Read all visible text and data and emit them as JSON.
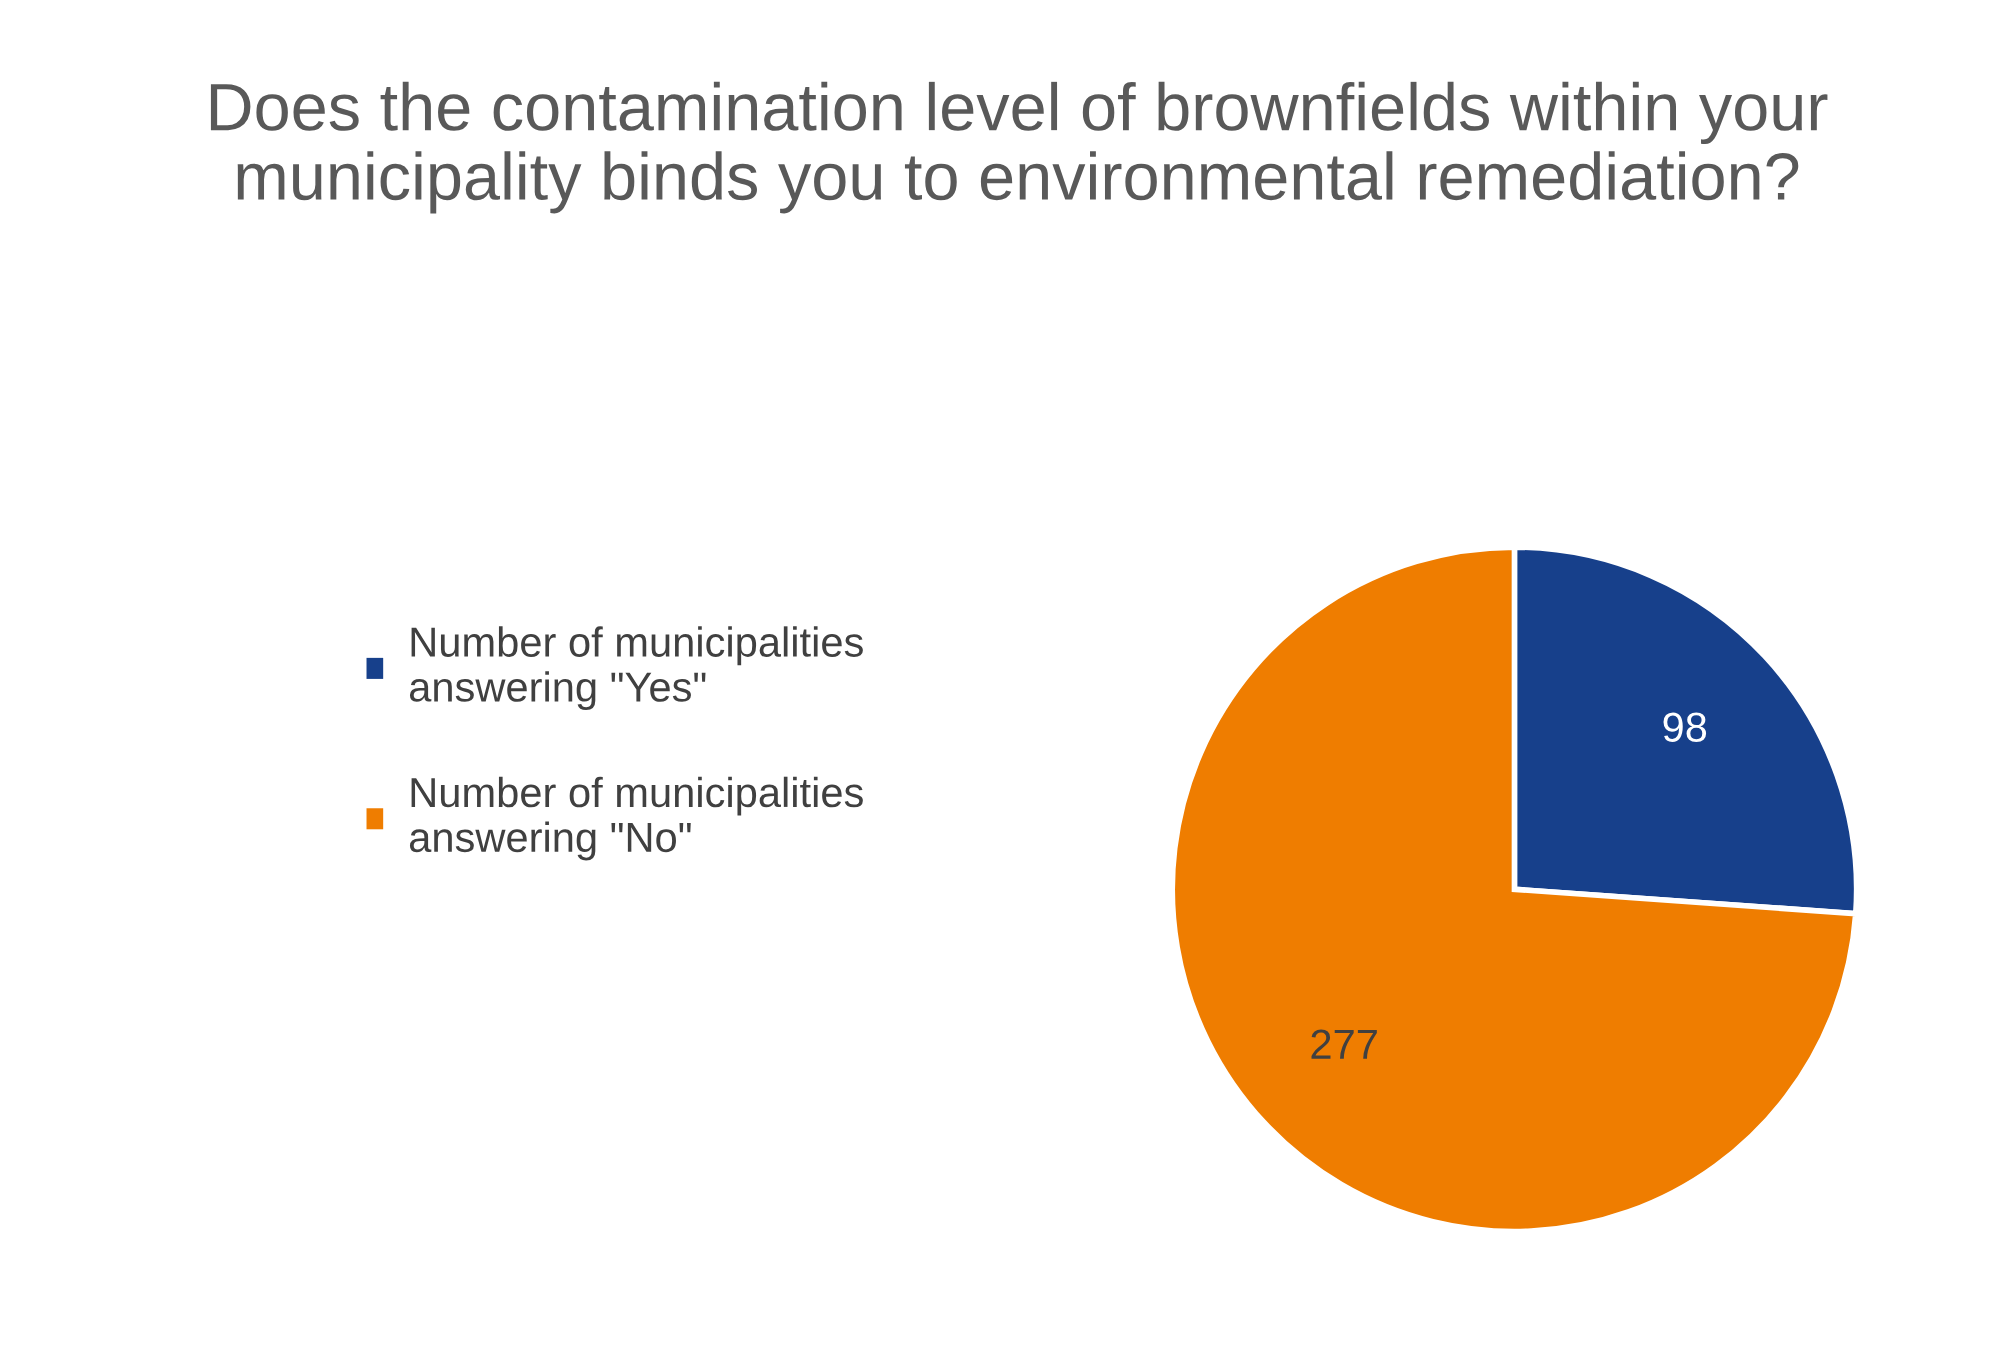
{
  "chart_data": {
    "type": "pie",
    "title": "Does the contamination level of brownfields within your municipality binds you to environmental remediation?",
    "categories": [
      "Number of municipalities answering \"Yes\"",
      "Number of municipalities answering \"No\""
    ],
    "values": [
      98,
      277
    ],
    "colors": [
      "#17408b",
      "#ef7d00"
    ],
    "data_labels": true,
    "legend": "left"
  }
}
